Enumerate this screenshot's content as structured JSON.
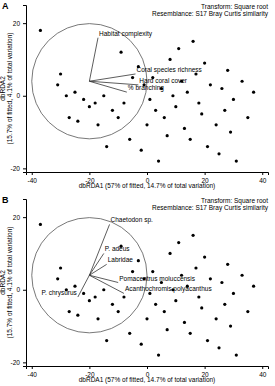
{
  "chart_data": [
    {
      "type": "scatter",
      "title": "A",
      "xlabel": "dbRDA1 (57% of fitted, 14.7% of total variation)",
      "ylabel": "dbRDA2\n(15.7% of fitted, 4.1% of total variation)",
      "annotations": [
        "Transform: Square root",
        "Resemblance: S17 Bray Curtis similarity"
      ],
      "xlim": [
        -42,
        42
      ],
      "ylim": [
        -21,
        25
      ],
      "xticks": [
        -40,
        -20,
        0,
        20,
        40
      ],
      "yticks": [
        -20,
        0,
        20
      ],
      "x": [
        -37,
        -30,
        -31,
        -28,
        -25,
        -22,
        -20,
        -18,
        -15,
        -12,
        -27,
        -24,
        -17,
        -10,
        -8,
        -5,
        -3,
        -1,
        1,
        2,
        3,
        5,
        6,
        8,
        9,
        10,
        12,
        13,
        14,
        15,
        17,
        18,
        19,
        20,
        21,
        22,
        24,
        25,
        26,
        27,
        28,
        29,
        30,
        31,
        33,
        35,
        37,
        -6,
        -2,
        4,
        7,
        -14,
        0,
        11,
        16,
        -9
      ],
      "y": [
        18,
        6,
        3,
        0,
        1,
        -1,
        -3,
        -2,
        0,
        -4,
        -6,
        -7,
        -8,
        -6,
        -2,
        5,
        8,
        3,
        -1,
        5,
        -4,
        2,
        -6,
        10,
        0,
        -3,
        4,
        -9,
        1,
        -12,
        6,
        -2,
        -5,
        9,
        -14,
        3,
        -8,
        -16,
        2,
        -4,
        7,
        -10,
        -1,
        -18,
        4,
        -6,
        1,
        -12,
        -15,
        -18,
        -11,
        -14,
        -8,
        13,
        15,
        12
      ],
      "circle": {
        "center": [
          -20,
          4
        ],
        "radius": 20
      },
      "vector_origin": [
        -20,
        4
      ],
      "vectors": [
        {
          "label": "Habitat complexity",
          "x": -17,
          "y": 16
        },
        {
          "label": "Coral species richness",
          "x": -4,
          "y": 6
        },
        {
          "label": "Hard coral cover",
          "x": -3,
          "y": 3
        },
        {
          "label": "% branching",
          "x": -7,
          "y": 1
        }
      ]
    },
    {
      "type": "scatter",
      "title": "B",
      "xlabel": "dbRDA1 (57% of fitted, 14.7% of total variation)",
      "ylabel": "dbRDA2\n(15.7% of fitted, 4.1% of total variation)",
      "annotations": [
        "Transform: Square root",
        "Resemblance: S17 Bray Curtis similarity"
      ],
      "xlim": [
        -42,
        42
      ],
      "ylim": [
        -21,
        25
      ],
      "xticks": [
        -40,
        -20,
        0,
        20,
        40
      ],
      "yticks": [
        -20,
        0,
        20
      ],
      "x": [
        -37,
        -30,
        -31,
        -28,
        -25,
        -22,
        -20,
        -18,
        -15,
        -12,
        -27,
        -24,
        -17,
        -10,
        -8,
        -5,
        -3,
        -1,
        1,
        2,
        3,
        5,
        6,
        8,
        9,
        10,
        12,
        13,
        14,
        15,
        17,
        18,
        19,
        20,
        21,
        22,
        24,
        25,
        26,
        27,
        28,
        29,
        30,
        31,
        33,
        35,
        37,
        -6,
        -2,
        4,
        7,
        -14,
        0,
        11,
        16,
        -9
      ],
      "y": [
        18,
        6,
        3,
        0,
        1,
        -1,
        -3,
        -2,
        0,
        -4,
        -6,
        -7,
        -8,
        -6,
        -2,
        5,
        8,
        3,
        -1,
        5,
        -4,
        2,
        -6,
        10,
        0,
        -3,
        4,
        -9,
        1,
        -12,
        6,
        -2,
        -5,
        9,
        -14,
        3,
        -8,
        -16,
        2,
        -4,
        7,
        -10,
        -1,
        -18,
        4,
        -6,
        1,
        -12,
        -15,
        -18,
        -11,
        -14,
        -8,
        13,
        15,
        12
      ],
      "circle": {
        "center": [
          -20,
          4
        ],
        "radius": 20
      },
      "vector_origin": [
        -20,
        4
      ],
      "vectors": [
        {
          "label": "Chaetodon sp.",
          "x": -13,
          "y": 18
        },
        {
          "label": "P. adeus",
          "x": -15,
          "y": 10
        },
        {
          "label": "Labridae",
          "x": -14,
          "y": 7
        },
        {
          "label": "Pomacentrus moluccensis",
          "x": -10,
          "y": 2
        },
        {
          "label": "Acanthochromis polyacanthus",
          "x": -8,
          "y": -1
        },
        {
          "label": "P. chrysurus",
          "x": -24,
          "y": -2
        }
      ]
    }
  ]
}
